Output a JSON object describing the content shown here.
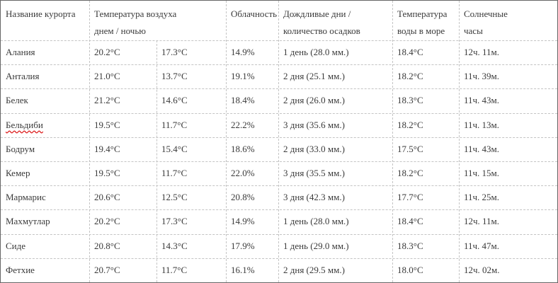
{
  "table": {
    "header": [
      [
        "Название курорта"
      ],
      [
        "Температура воздуха",
        "днем / ночью"
      ],
      [
        "Облачность"
      ],
      [
        "Дождливые дни /",
        "количество осадков"
      ],
      [
        "Температура",
        "воды в море"
      ],
      [
        "Солнечные",
        "часы"
      ]
    ],
    "rows": [
      [
        "Алания",
        "20.2°C",
        "17.3°C",
        "14.9%",
        "1 день (28.0 мм.)",
        "18.4°C",
        "12ч. 11м."
      ],
      [
        "Анталия",
        "21.0°C",
        "13.7°C",
        "19.1%",
        "2 дня (25.1 мм.)",
        "18.2°C",
        "11ч. 39м."
      ],
      [
        "Белек",
        "21.2°C",
        "14.6°C",
        "18.4%",
        "2 дня (26.0 мм.)",
        "18.3°C",
        "11ч. 43м."
      ],
      [
        "Бельдиби",
        "19.5°C",
        "11.7°C",
        "22.2%",
        "3 дня (35.6 мм.)",
        "18.2°C",
        "11ч. 13м."
      ],
      [
        "Бодрум",
        "19.4°C",
        "15.4°C",
        "18.6%",
        "2 дня (33.0 мм.)",
        "17.5°C",
        "11ч. 43м."
      ],
      [
        "Кемер",
        "19.5°C",
        "11.7°C",
        "22.0%",
        "3 дня (35.5 мм.)",
        "18.2°C",
        "11ч. 15м."
      ],
      [
        "Мармарис",
        "20.6°C",
        "12.5°C",
        "20.8%",
        "3 дня (42.3 мм.)",
        "17.7°C",
        "11ч. 25м."
      ],
      [
        "Махмутлар",
        "20.2°C",
        "17.3°C",
        "14.9%",
        "1 день (28.0 мм.)",
        "18.4°C",
        "12ч. 11м."
      ],
      [
        "Сиде",
        "20.8°C",
        "14.3°C",
        "17.9%",
        "1 день (29.0 мм.)",
        "18.3°C",
        "11ч. 47м."
      ],
      [
        "Фетхие",
        "20.7°C",
        "11.7°C",
        "16.1%",
        "2 дня (29.5 мм.)",
        "18.0°C",
        "12ч. 02м."
      ]
    ]
  }
}
